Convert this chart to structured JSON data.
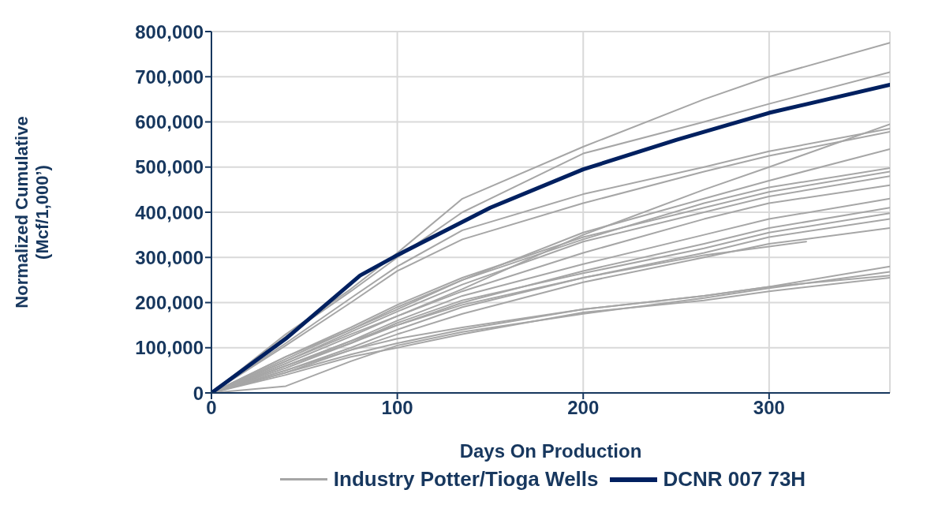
{
  "chart_data": {
    "type": "line",
    "xlabel": "Days On Production",
    "ylabel": "Normalized Cumulative\n(Mcf/1,000’)",
    "xlim": [
      0,
      365
    ],
    "xticks": [
      0,
      100,
      200,
      300
    ],
    "ylim": [
      0,
      800000
    ],
    "yticks": [
      0,
      {
        "value": 100000,
        "label": "100,000"
      },
      {
        "value": 200000,
        "label": "200,000"
      },
      {
        "value": 300000,
        "label": "300,000"
      },
      {
        "value": 400000,
        "label": "400,000"
      },
      {
        "value": 500000,
        "label": "500,000"
      },
      {
        "value": 600000,
        "label": "600,000"
      },
      {
        "value": 700000,
        "label": "700,000"
      },
      {
        "value": 800000,
        "label": "800,000"
      }
    ],
    "grid": true,
    "legend": "bottom",
    "marker": "none",
    "line_style": "solid",
    "x": [
      0,
      40,
      75,
      100,
      135,
      200,
      265,
      300,
      365
    ],
    "series": [
      {
        "name": "Industry Potter/Tioga Wells",
        "color": "#a6a6a6",
        "values": [
          0,
          130000,
          230000,
          310000,
          430000,
          545000,
          650000,
          700000,
          775000
        ]
      },
      {
        "color": "#a6a6a6",
        "values": [
          0,
          125000,
          225000,
          300000,
          400000,
          530000,
          600000,
          640000,
          710000
        ]
      },
      {
        "color": "#a6a6a6",
        "values": [
          0,
          70000,
          130000,
          170000,
          230000,
          350000,
          450000,
          500000,
          595000
        ]
      },
      {
        "color": "#a6a6a6",
        "values": [
          0,
          110000,
          210000,
          280000,
          360000,
          440000,
          500000,
          535000,
          585000
        ]
      },
      {
        "color": "#a6a6a6",
        "values": [
          0,
          105000,
          200000,
          270000,
          340000,
          420000,
          490000,
          525000,
          578000
        ]
      },
      {
        "color": "#a6a6a6",
        "values": [
          0,
          80000,
          140000,
          185000,
          250000,
          355000,
          430000,
          470000,
          540000
        ]
      },
      {
        "color": "#a6a6a6",
        "values": [
          0,
          75000,
          140000,
          190000,
          250000,
          340000,
          420000,
          455000,
          498000
        ]
      },
      {
        "color": "#a6a6a6",
        "values": [
          0,
          80000,
          145000,
          195000,
          255000,
          345000,
          410000,
          445000,
          490000
        ]
      },
      {
        "color": "#a6a6a6",
        "values": [
          0,
          70000,
          135000,
          180000,
          240000,
          335000,
          400000,
          435000,
          480000
        ]
      },
      {
        "color": "#a6a6a6",
        "values": [
          0,
          65000,
          125000,
          170000,
          225000,
          310000,
          385000,
          420000,
          460000
        ]
      },
      {
        "color": "#a6a6a6",
        "values": [
          0,
          60000,
          115000,
          160000,
          215000,
          285000,
          350000,
          385000,
          430000
        ]
      },
      {
        "color": "#a6a6a6",
        "values": [
          0,
          55000,
          110000,
          150000,
          200000,
          270000,
          330000,
          365000,
          410000
        ]
      },
      {
        "color": "#a6a6a6",
        "values": [
          0,
          60000,
          110000,
          155000,
          205000,
          265000,
          320000,
          355000,
          398000
        ]
      },
      {
        "color": "#a6a6a6",
        "values": [
          0,
          50000,
          100000,
          140000,
          190000,
          255000,
          310000,
          345000,
          385000
        ]
      },
      {
        "color": "#a6a6a6",
        "values": [
          0,
          45000,
          95000,
          130000,
          175000,
          245000,
          300000,
          330000,
          365000
        ]
      },
      {
        "color": "#a6a6a6",
        "values": [
          0,
          45000,
          85000,
          110000,
          140000,
          185000,
          215000,
          235000,
          280000
        ]
      },
      {
        "color": "#a6a6a6",
        "values": [
          0,
          15000,
          70000,
          105000,
          135000,
          175000,
          210000,
          232000,
          268000
        ]
      },
      {
        "color": "#a6a6a6",
        "values": [
          0,
          50000,
          95000,
          120000,
          145000,
          185000,
          215000,
          235000,
          260000
        ]
      },
      {
        "color": "#a6a6a6",
        "values": [
          0,
          40000,
          80000,
          100000,
          130000,
          178000,
          205000,
          225000,
          255000
        ]
      },
      {
        "color": "#a6a6a6",
        "x": [
          0,
          40,
          75,
          100,
          135,
          200,
          265,
          320
        ],
        "values": [
          0,
          60000,
          115000,
          150000,
          195000,
          255000,
          305000,
          335000
        ]
      },
      {
        "name": "DCNR 007 73H",
        "color": "#002060",
        "x": [
          0,
          40,
          80,
          100,
          150,
          200,
          250,
          300,
          365
        ],
        "values": [
          0,
          120000,
          260000,
          305000,
          410000,
          495000,
          560000,
          620000,
          682000
        ]
      }
    ]
  }
}
